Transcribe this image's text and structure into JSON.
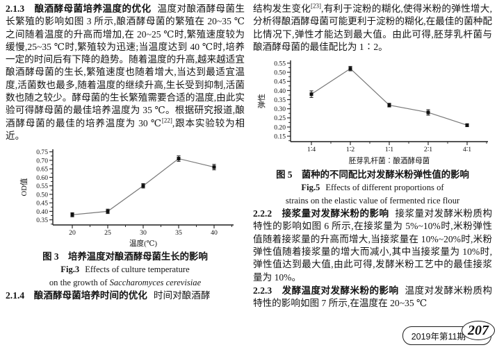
{
  "left_column": {
    "sec213": {
      "heading": "2.1.3　酿酒酵母菌培养温度的优化",
      "body1": "温度对酿酒酵母菌生长繁殖的影响如图 3 所示,酿酒酵母菌的繁殖在 20~35 ℃之间随着温度的升高而增加,在 20~25 ℃时,繁殖速度较为缓慢,25~35 ℃时,繁殖较为迅速;当温度达到 40 ℃时,培养一定的时间后有下降的趋势。随着温度的升高,越来越适宜酿酒酵母菌的生长,繁殖速度也随着增大,当达到最适宜温度,活菌数也最多,随着温度的继续升高,生长受到抑制,活菌数也随之较少。酵母菌的生长繁殖需要合适的温度,由此实验可得酵母菌的最佳培养温度为 35 ℃。根据研究报道,酿酒酵母菌的最佳的培养温度为 30 ℃",
      "ref": "[22]",
      "body2": ",跟本实验较为相近。"
    },
    "fig3": {
      "caption_cn": "图 3　培养温度对酿酒酵母菌生长的影响",
      "fig_label": "Fig.3",
      "caption_en1": "Effects of culture temperature",
      "caption_en2_prefix": "on the growth of ",
      "species_italic": "Saccharomyces cerevisiae"
    },
    "sec214": {
      "heading": "2.1.4　酿酒酵母菌培养时间的优化",
      "body": "时间对酿酒酵"
    }
  },
  "right_column": {
    "para": {
      "body1": "结构发生变化",
      "ref": "[23]",
      "body2": ",有利于淀粉的糊化,使得米粉的弹性增大,分析得酿酒酵母菌可能更利于淀粉的糊化,在最佳的菌种配比情况下,弹性才能达到最大值。由此可得,胚芽乳杆菌与酿酒酵母菌的最佳配比为 1∶2。"
    },
    "fig5": {
      "caption_cn": "图 5　菌种的不同配比对发酵米粉弹性值的影响",
      "fig_label": "Fig.5",
      "caption_en1": "Effects of different proportions of",
      "caption_en2": "strains on the elastic value of fermented rice flour"
    },
    "sec222": {
      "heading": "2.2.2　接浆量对发酵米粉的影响",
      "body": "接浆量对发酵米粉质构特性的影响如图 6 所示,在接浆量为 5%~10%时,米粉弹性值随着接浆量的升高而增大,当接浆量在 10%~20%时,米粉弹性值随着接浆量的增大而减小,其中当接浆量为 10%时,弹性值达到最大值,由此可得,发酵米粉工艺中的最佳接浆量为 10%。"
    },
    "sec223": {
      "heading": "2.2.3　发酵温度对发酵米粉的影响",
      "body": "温度对发酵米粉质构特性的影响如图 7 所示,在温度在 20~35 ℃"
    }
  },
  "footer": {
    "issue": "2019年第11期",
    "page_number": "207"
  },
  "chart_data": [
    {
      "id": "fig3",
      "type": "line",
      "title": "图 3 培养温度对酿酒酵母菌生长的影响",
      "categories": [
        "20",
        "25",
        "30",
        "35",
        "40"
      ],
      "values": [
        0.38,
        0.4,
        0.55,
        0.71,
        0.66
      ],
      "errors": [
        0.012,
        0.013,
        0.013,
        0.016,
        0.016
      ],
      "xlabel": "温度(℃)",
      "ylabel": "OD值",
      "ylim": [
        0.35,
        0.75
      ],
      "yticks": [
        0.35,
        0.4,
        0.45,
        0.5,
        0.55,
        0.6,
        0.65,
        0.7,
        0.75
      ],
      "grid": false,
      "legend": "none",
      "marker": "square",
      "line_color": "#777777",
      "marker_color": "#111111"
    },
    {
      "id": "fig5",
      "type": "line",
      "title": "图 5 菌种的不同配比对发酵米粉弹性值的影响",
      "categories": [
        "1∶4",
        "1∶2",
        "1∶1",
        "2∶1",
        "4∶1"
      ],
      "values": [
        0.38,
        0.52,
        0.32,
        0.28,
        0.21
      ],
      "errors": [
        0.018,
        0.012,
        0.01,
        0.015,
        0.008
      ],
      "xlabel": "胚芽乳杆菌∶酿酒酵母菌",
      "ylabel": "弹性",
      "ylim": [
        0.15,
        0.55
      ],
      "yticks": [
        0.15,
        0.2,
        0.25,
        0.3,
        0.35,
        0.4,
        0.45,
        0.5,
        0.55
      ],
      "grid": false,
      "legend": "none",
      "marker": "square",
      "line_color": "#777777",
      "marker_color": "#111111"
    }
  ]
}
